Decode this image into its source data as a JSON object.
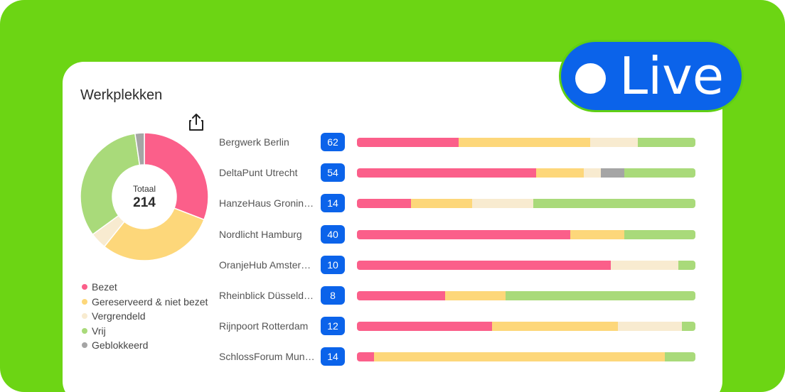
{
  "card": {
    "title": "Werkplekken",
    "total_label": "Totaal",
    "total_value": "214"
  },
  "live_badge": {
    "label": "Live"
  },
  "colors": {
    "bezet": "#fb5f8a",
    "gereserveerd": "#fdd77a",
    "vergrendeld": "#f8ebd0",
    "vrij": "#a9da7a",
    "geblokkeerd": "#a5a5a5",
    "badge": "#0b63ea",
    "background": "#6cd514"
  },
  "chart_data": [
    {
      "type": "pie",
      "title": "Werkplekken",
      "center_label": "Totaal",
      "center_value": 214,
      "slices": [
        {
          "name": "Bezet",
          "value": 66
        },
        {
          "name": "Gereserveerd & niet bezet",
          "value": 64
        },
        {
          "name": "Vergrendeld",
          "value": 9
        },
        {
          "name": "Vrij",
          "value": 70
        },
        {
          "name": "Geblokkeerd",
          "value": 5
        }
      ],
      "legend": [
        {
          "name": "Bezet",
          "color": "#fb5f8a"
        },
        {
          "name": "Gereserveerd & niet bezet",
          "color": "#fdd77a"
        },
        {
          "name": "Vergrendeld",
          "color": "#f8ebd0"
        },
        {
          "name": "Vrij",
          "color": "#a9da7a"
        },
        {
          "name": "Geblokkeerd",
          "color": "#a5a5a5"
        }
      ],
      "legend_position": "bottom-left"
    },
    {
      "type": "bar",
      "stacked": true,
      "orientation": "horizontal",
      "normalized": "percent",
      "categories": [
        "Bergwerk Berlin",
        "DeltaPunt Utrecht",
        "HanzeHaus Groning…",
        "Nordlicht Hamburg",
        "OranjeHub Amsterd…",
        "Rheinblick Düsseld…",
        "Rijnpoort Rotterdam",
        "SchlossForum Muni…"
      ],
      "counts": [
        62,
        54,
        14,
        40,
        10,
        8,
        12,
        14
      ],
      "series": [
        {
          "name": "Bezet",
          "color": "#fb5f8a",
          "values": [
            30,
            53,
            16,
            63,
            75,
            26,
            40,
            5
          ]
        },
        {
          "name": "Gereserveerd & niet bezet",
          "color": "#fdd77a",
          "values": [
            39,
            14,
            18,
            16,
            0,
            18,
            37,
            86
          ]
        },
        {
          "name": "Vergrendeld",
          "color": "#f8ebd0",
          "values": [
            14,
            5,
            18,
            0,
            20,
            0,
            19,
            0
          ]
        },
        {
          "name": "Geblokkeerd",
          "color": "#a5a5a5",
          "values": [
            0,
            7,
            0,
            0,
            0,
            0,
            0,
            0
          ]
        },
        {
          "name": "Vrij",
          "color": "#a9da7a",
          "values": [
            17,
            21,
            48,
            21,
            5,
            56,
            4,
            9
          ]
        }
      ]
    }
  ]
}
